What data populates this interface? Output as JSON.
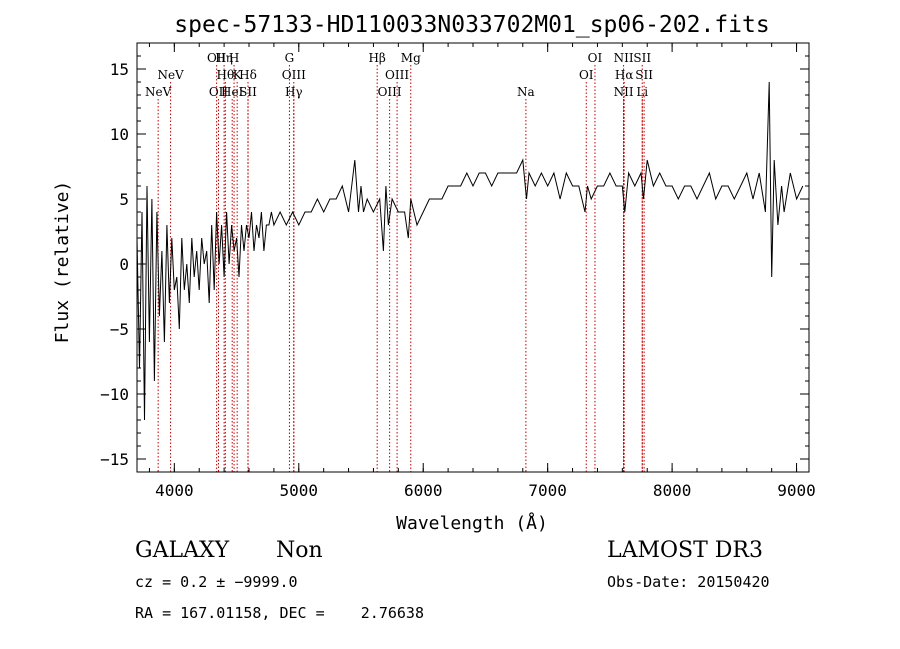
{
  "chart_data": {
    "type": "line",
    "title": "spec-57133-HD110033N033702M01_sp06-202.fits",
    "xlabel": "Wavelength (Å)",
    "ylabel": "Flux (relative)",
    "xlim": [
      3700,
      9100
    ],
    "ylim": [
      -16,
      17
    ],
    "xticks": [
      4000,
      5000,
      6000,
      7000,
      8000,
      9000
    ],
    "yticks": [
      -15,
      -10,
      -5,
      0,
      5,
      10,
      15
    ],
    "grid": false,
    "series": [
      {
        "x": [
          3700,
          3720,
          3740,
          3760,
          3780,
          3800,
          3820,
          3840,
          3860,
          3880,
          3900,
          3920,
          3940,
          3960,
          3980,
          4000,
          4020,
          4040,
          4060,
          4080,
          4100,
          4120,
          4140,
          4160,
          4180,
          4200,
          4220,
          4240,
          4260,
          4280,
          4300,
          4320,
          4340,
          4360,
          4380,
          4400,
          4420,
          4440,
          4460,
          4480,
          4500,
          4520,
          4540,
          4560,
          4580,
          4600,
          4620,
          4640,
          4660,
          4680,
          4700,
          4720,
          4740,
          4760,
          4780,
          4800,
          4850,
          4900,
          4950,
          5000,
          5050,
          5100,
          5150,
          5200,
          5250,
          5300,
          5350,
          5400,
          5450,
          5480,
          5500,
          5520,
          5550,
          5600,
          5650,
          5680,
          5700,
          5720,
          5750,
          5800,
          5850,
          5880,
          5900,
          5950,
          6000,
          6050,
          6100,
          6150,
          6200,
          6250,
          6300,
          6350,
          6400,
          6450,
          6500,
          6550,
          6600,
          6650,
          6700,
          6750,
          6800,
          6830,
          6850,
          6900,
          6950,
          7000,
          7050,
          7100,
          7150,
          7200,
          7250,
          7300,
          7320,
          7350,
          7400,
          7450,
          7500,
          7550,
          7600,
          7620,
          7650,
          7700,
          7750,
          7770,
          7800,
          7850,
          7900,
          7950,
          8000,
          8050,
          8100,
          8150,
          8200,
          8250,
          8300,
          8350,
          8400,
          8450,
          8500,
          8550,
          8600,
          8650,
          8700,
          8750,
          8780,
          8800,
          8820,
          8850,
          8880,
          8900,
          8950,
          9000,
          9050
        ],
        "y": [
          2,
          -8,
          4,
          -12,
          6,
          -6,
          5,
          -9,
          4,
          -4,
          1,
          -6,
          3,
          -3,
          2,
          -2,
          -1,
          -5,
          2,
          -2,
          0,
          -3,
          2,
          -1,
          1,
          -2,
          2,
          0,
          1,
          -3,
          3,
          -2,
          4,
          0,
          3,
          -1,
          4,
          0,
          3,
          1,
          2,
          -1,
          3,
          1,
          3,
          2,
          4,
          1,
          3,
          2,
          4,
          1,
          3,
          3,
          4,
          3,
          4,
          3,
          4,
          3,
          4,
          4,
          5,
          4,
          5,
          5,
          6,
          4,
          8,
          4,
          6,
          4,
          5,
          4,
          5,
          1,
          6,
          3,
          5,
          4,
          4,
          2,
          5,
          3,
          4,
          5,
          5,
          5,
          6,
          6,
          6,
          7,
          6,
          7,
          7,
          6,
          7,
          7,
          7,
          7,
          8,
          5,
          7,
          6,
          7,
          6,
          7,
          5,
          7,
          6,
          6,
          4,
          6,
          5,
          6,
          6,
          7,
          6,
          6,
          4,
          7,
          6,
          7,
          5,
          8,
          6,
          7,
          6,
          6,
          5,
          6,
          6,
          5,
          6,
          7,
          5,
          6,
          6,
          5,
          6,
          7,
          5,
          7,
          4,
          14,
          -1,
          8,
          3,
          6,
          4,
          7,
          5,
          6
        ]
      }
    ],
    "lines": [
      {
        "name": "NeV",
        "wl": 3870,
        "row": 3
      },
      {
        "name": "NeV",
        "wl": 3970,
        "row": 2
      },
      {
        "name": "OII",
        "wl": 4340,
        "row": 1
      },
      {
        "name": "Hη",
        "wl": 4400,
        "row": 1
      },
      {
        "name": "H",
        "wl": 4480,
        "row": 1
      },
      {
        "name": "Hθ",
        "wl": 4410,
        "row": 2
      },
      {
        "name": "K",
        "wl": 4505,
        "row": 2
      },
      {
        "name": "Hδ",
        "wl": 4592,
        "row": 2
      },
      {
        "name": "OII",
        "wl": 4355,
        "row": 3
      },
      {
        "name": "HeI",
        "wl": 4465,
        "row": 3
      },
      {
        "name": "SII",
        "wl": 4592,
        "row": 3
      },
      {
        "name": "G",
        "wl": 4925,
        "row": 1
      },
      {
        "name": "OIII",
        "wl": 4960,
        "row": 2
      },
      {
        "name": "Hγ",
        "wl": 4960,
        "row": 3
      },
      {
        "name": "Hβ",
        "wl": 5630,
        "row": 1
      },
      {
        "name": "Mg",
        "wl": 5900,
        "row": 1
      },
      {
        "name": "OIII",
        "wl": 5790,
        "row": 2
      },
      {
        "name": "OIII",
        "wl": 5730,
        "row": 3
      },
      {
        "name": "Na",
        "wl": 6825,
        "row": 3
      },
      {
        "name": "OI",
        "wl": 7380,
        "row": 1
      },
      {
        "name": "OI",
        "wl": 7310,
        "row": 2
      },
      {
        "name": "NII",
        "wl": 7610,
        "row": 1
      },
      {
        "name": "SII",
        "wl": 7760,
        "row": 1
      },
      {
        "name": "Hα",
        "wl": 7615,
        "row": 2
      },
      {
        "name": "SII",
        "wl": 7775,
        "row": 2
      },
      {
        "name": "NII",
        "wl": 7610,
        "row": 3
      },
      {
        "name": "Li",
        "wl": 7760,
        "row": 3
      }
    ]
  },
  "info": {
    "class": "GALAXY",
    "subclass": "Non",
    "survey": "LAMOST DR3",
    "cz": "cz = 0.2 ± −9999.0",
    "obs_date": "Obs-Date: 20150420",
    "radec": "RA = 167.01158, DEC =    2.76638"
  },
  "colors": {
    "axis": "#000000",
    "spectrum": "#000000",
    "lines": "#c00000"
  }
}
